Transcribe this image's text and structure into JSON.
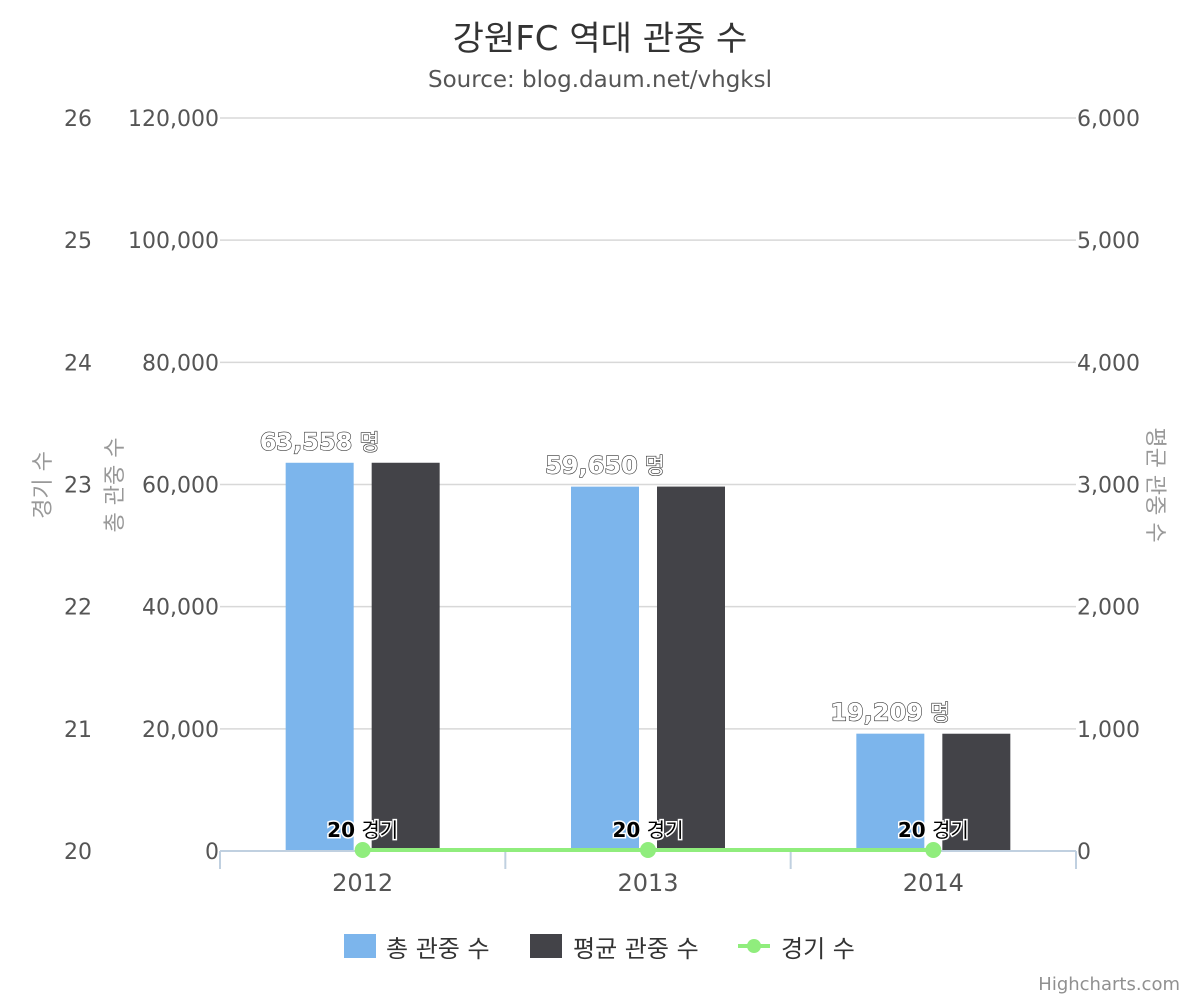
{
  "chart_data": {
    "type": "bar",
    "title": "강원FC 역대 관중 수",
    "subtitle": "Source: blog.daum.net/vhgksl",
    "categories": [
      "2012",
      "2013",
      "2014"
    ],
    "series": [
      {
        "name": "총 관중 수",
        "type": "bar",
        "axis": "left-inner",
        "color": "#7cb5ec",
        "values": [
          63558,
          59650,
          19209
        ]
      },
      {
        "name": "평균 관중 수",
        "type": "bar",
        "axis": "right",
        "color": "#434348",
        "values": [
          3178,
          2983,
          960
        ]
      },
      {
        "name": "경기 수",
        "type": "line",
        "axis": "left-outer",
        "color": "#90ed7d",
        "values": [
          20,
          20,
          20
        ]
      }
    ],
    "axes": {
      "left_outer": {
        "title": "경기 수",
        "ylim": [
          20,
          26
        ],
        "ticks": [
          "20",
          "21",
          "22",
          "23",
          "24",
          "25",
          "26"
        ]
      },
      "left_inner": {
        "title": "총 관중 수",
        "ylim": [
          0,
          120000
        ],
        "ticks": [
          "0",
          "20,000",
          "40,000",
          "60,000",
          "80,000",
          "100,000",
          "120,000"
        ]
      },
      "right": {
        "title": "평균 관중 수",
        "ylim": [
          0,
          6000
        ],
        "ticks": [
          "0",
          "1,000",
          "2,000",
          "3,000",
          "4,000",
          "5,000",
          "6,000"
        ]
      }
    },
    "bar_data_labels": [
      "63,558",
      "59,650",
      "19,209"
    ],
    "bar_label_suffix": "명",
    "line_data_labels": [
      "20",
      "20",
      "20"
    ],
    "line_label_suffix": "경기",
    "grid": true,
    "legend": "bottom-center"
  },
  "credits": "Highcharts.com"
}
